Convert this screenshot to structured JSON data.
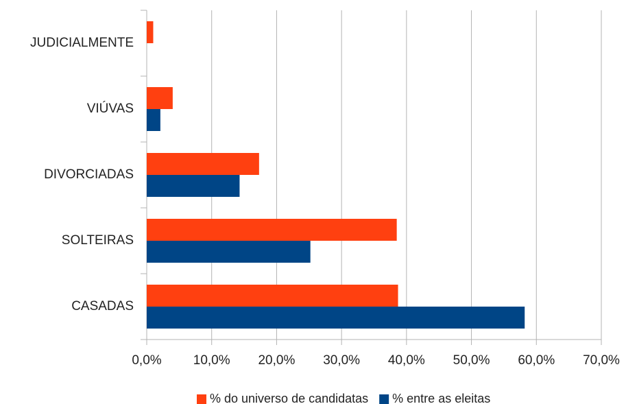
{
  "chart_data": {
    "type": "hbar",
    "categories": [
      "JUDICIALMENTE",
      "VIÚVAS",
      "DIVORCIADAS",
      "SOLTEIRAS",
      "CASADAS"
    ],
    "series": [
      {
        "name": "% do universo de candidatas",
        "color": "#ff4010",
        "values": [
          1.0,
          4.0,
          17.3,
          38.5,
          38.7
        ]
      },
      {
        "name": "% entre as eleitas",
        "color": "#004586",
        "values": [
          0,
          2.1,
          14.3,
          25.2,
          58.2
        ]
      }
    ],
    "xlim": [
      0,
      70
    ],
    "xticks": [
      {
        "value": 0,
        "label": "0,0%"
      },
      {
        "value": 10,
        "label": "10,0%"
      },
      {
        "value": 20,
        "label": "20,0%"
      },
      {
        "value": 30,
        "label": "30,0%"
      },
      {
        "value": 40,
        "label": "40,0%"
      },
      {
        "value": 50,
        "label": "50,0%"
      },
      {
        "value": 60,
        "label": "60,0%"
      },
      {
        "value": 70,
        "label": "70,0%"
      }
    ],
    "grid": true,
    "legend": "bottom"
  }
}
